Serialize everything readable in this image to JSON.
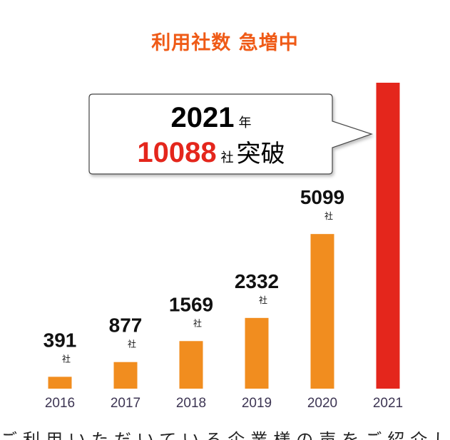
{
  "title": "利用社数 急増中",
  "colors": {
    "title": "#ef5a16",
    "bar": "#f18d1f",
    "highlight_bar": "#e4261c",
    "highlight_number": "#e4261c",
    "value_text": "#111111",
    "axis_text": "#3d3553"
  },
  "callout": {
    "year": "2021",
    "year_unit": "年",
    "count": "10088",
    "count_unit": "社",
    "suffix": "突破"
  },
  "bottom_text": "ご利用いただいている企業様の声をご紹介します",
  "chart_data": {
    "type": "bar",
    "title": "利用社数 急増中",
    "categories": [
      "2016",
      "2017",
      "2018",
      "2019",
      "2020",
      "2021"
    ],
    "values": [
      391,
      877,
      1569,
      2332,
      5099,
      10088
    ],
    "value_labels": [
      "391",
      "877",
      "1569",
      "2332",
      "5099",
      ""
    ],
    "unit": "社",
    "highlight_category": "2021",
    "xlabel": "",
    "ylabel": "",
    "ylim": [
      0,
      10088
    ],
    "grid": false,
    "legend": "none"
  }
}
